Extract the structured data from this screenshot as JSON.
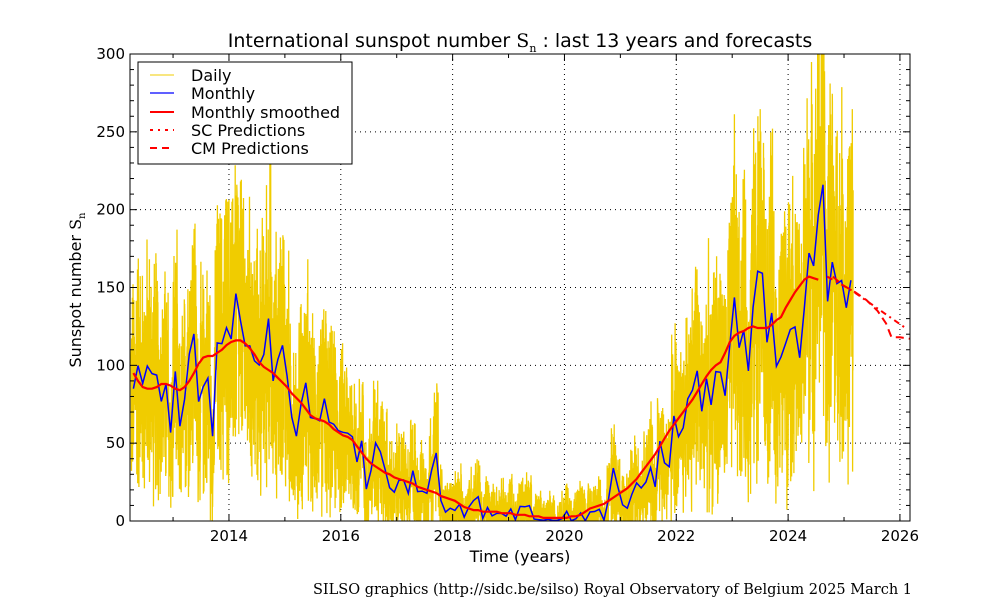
{
  "chart_data": {
    "type": "line",
    "title_prefix": "International sunspot number ",
    "title_symbol": "S",
    "title_subscript": "n",
    "title_suffix": " : last 13 years and forecasts",
    "xlabel": "Time (years)",
    "ylabel_prefix": "Sunspot number ",
    "ylabel_symbol": "S",
    "ylabel_subscript": "n",
    "xlim": [
      2012.23,
      2026.18
    ],
    "ylim": [
      0,
      300
    ],
    "xticks": [
      "2014",
      "2016",
      "2018",
      "2020",
      "2022",
      "2024",
      "2026"
    ],
    "yticks": [
      "0",
      "50",
      "100",
      "150",
      "200",
      "250",
      "300"
    ],
    "grid": true,
    "legend_placement": "top-left",
    "legend": [
      "Daily",
      "Monthly",
      "Monthly smoothed",
      "SC Predictions",
      "CM Predictions"
    ],
    "colors": {
      "daily": "#f0cc00",
      "monthly": "#0000ff",
      "smoothed": "#ff0000",
      "predictions": "#ff0000"
    },
    "monthly_start": 2012.29,
    "monthly": [
      85.0,
      99.8,
      88.3,
      99.6,
      94.7,
      93.7,
      76.8,
      87.9,
      56.8,
      96.1,
      60.9,
      78.3,
      107.3,
      120.2,
      76.7,
      86.2,
      91.8,
      54.5,
      114.4,
      113.9,
      124.2,
      117.0,
      146.1,
      128.7,
      112.5,
      112.5,
      102.9,
      100.2,
      106.9,
      130.0,
      90.0,
      103.6,
      112.9,
      93.0,
      66.7,
      54.5,
      75.3,
      88.8,
      66.5,
      65.8,
      64.4,
      78.6,
      63.6,
      62.2,
      58.0,
      57.0,
      56.4,
      54.1,
      37.9,
      51.5,
      20.5,
      32.4,
      50.2,
      44.6,
      33.4,
      21.4,
      18.5,
      26.1,
      26.4,
      17.7,
      32.3,
      18.9,
      19.2,
      17.8,
      32.6,
      43.7,
      13.2,
      5.7,
      8.2,
      6.8,
      10.7,
      2.5,
      8.9,
      13.1,
      15.6,
      1.6,
      8.7,
      3.3,
      4.9,
      4.9,
      3.1,
      7.7,
      0.8,
      9.4,
      9.1,
      9.9,
      1.2,
      0.9,
      0.5,
      1.1,
      0.4,
      0.5,
      1.5,
      6.2,
      0.2,
      1.5,
      5.2,
      0.2,
      5.8,
      6.1,
      7.5,
      0.6,
      14.4,
      34.0,
      21.8,
      10.4,
      8.2,
      17.2,
      24.5,
      21.2,
      25.0,
      34.3,
      22.0,
      51.3,
      37.4,
      34.8,
      67.5,
      54.2,
      59.9,
      78.5,
      84.1,
      96.5,
      70.5,
      91.4,
      74.6,
      96.0,
      95.5,
      80.5,
      113.1,
      143.6,
      111.3,
      122.6,
      96.4,
      137.4,
      160.5,
      159.1,
      114.8,
      133.6,
      99.4,
      105.4,
      114.2,
      123.0,
      124.7,
      104.9,
      136.5,
      172.1,
      163.9,
      196.7,
      216.0,
      141.1,
      166.3,
      152.5,
      154.5,
      137.0,
      154.6
    ],
    "smoothed_start": 2012.29,
    "smoothed": [
      95,
      90,
      86,
      85,
      85,
      86,
      88,
      88,
      87,
      85,
      84,
      86,
      90,
      95,
      101,
      105,
      106,
      106,
      108,
      110,
      113,
      115,
      116,
      116,
      114,
      111,
      107,
      102,
      99,
      97,
      95,
      92,
      89,
      86,
      82,
      79,
      76,
      72,
      68,
      66,
      65,
      64,
      62,
      59,
      57,
      55,
      54,
      52,
      48,
      44,
      40,
      37,
      35,
      33,
      31,
      30,
      28,
      27,
      26,
      25,
      24,
      22,
      21,
      20,
      19,
      18,
      16,
      15,
      14,
      13,
      11,
      9,
      8,
      7,
      7,
      6,
      6,
      6,
      6,
      5,
      5,
      5,
      4,
      4,
      4,
      3,
      3,
      3,
      2,
      2,
      2,
      2,
      2,
      2,
      3,
      3,
      4,
      6,
      8,
      9,
      10,
      11,
      13,
      15,
      17,
      19,
      21,
      24,
      27,
      31,
      35,
      39,
      43,
      48,
      53,
      58,
      62,
      66,
      70,
      74,
      78,
      83,
      88,
      93,
      97,
      100,
      102,
      108,
      115,
      119,
      121,
      122,
      124,
      125,
      124,
      124,
      124,
      126,
      129,
      131,
      137,
      142,
      147,
      151,
      155,
      157,
      156,
      155
    ],
    "sc_predictions": {
      "x": [
        2024.7,
        2024.9,
        2025.1,
        2025.3,
        2025.5,
        2025.7,
        2025.9,
        2026.1
      ],
      "y": [
        157,
        153,
        149,
        144,
        139,
        134,
        129,
        124
      ]
    },
    "cm_predictions": {
      "x": [
        2024.8,
        2025.0,
        2025.2,
        2025.4,
        2025.6,
        2025.75,
        2025.85,
        2026.0,
        2026.2
      ],
      "y": [
        157,
        151,
        147,
        142,
        135,
        127,
        118,
        118,
        117
      ]
    }
  },
  "footer": "SILSO graphics (http://sidc.be/silso)  Royal Observatory of Belgium  2025 March 1"
}
